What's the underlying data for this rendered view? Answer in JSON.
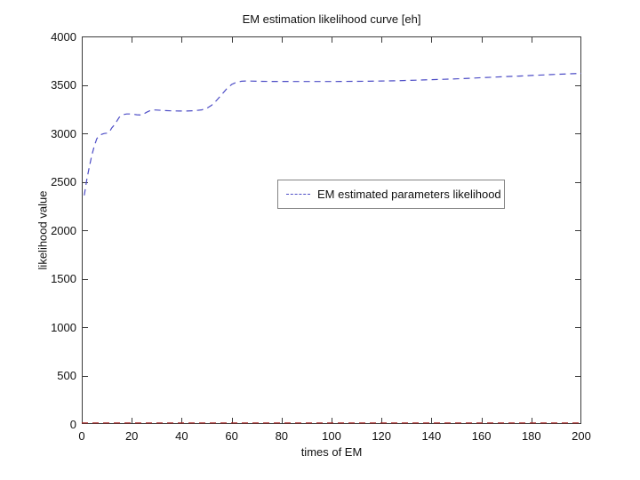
{
  "figure": {
    "title": "EM estimation likelihood curve [eh]",
    "xlabel": "times of EM",
    "ylabel": "likelihood value"
  },
  "legend": {
    "entries": [
      {
        "label": "EM estimated parameters likelihood",
        "color": "#4d4dc6",
        "style": "dashed"
      }
    ],
    "position": "center"
  },
  "chart_data": {
    "type": "line",
    "title": "EM estimation likelihood curve [eh]",
    "xlabel": "times of EM",
    "ylabel": "likelihood value",
    "xlim": [
      0,
      200
    ],
    "ylim": [
      0,
      4000
    ],
    "xticks": [
      0,
      20,
      40,
      60,
      80,
      100,
      120,
      140,
      160,
      180,
      200
    ],
    "yticks": [
      0,
      500,
      1000,
      1500,
      2000,
      2500,
      3000,
      3500,
      4000
    ],
    "grid": false,
    "axis_color": "#3c3c3c",
    "legend_position": "center",
    "series": [
      {
        "name": "EM estimated parameters likelihood",
        "color": "#4d4dc6",
        "line_style": "dashed",
        "points": [
          [
            1,
            2360
          ],
          [
            2,
            2520
          ],
          [
            3,
            2650
          ],
          [
            4,
            2770
          ],
          [
            5,
            2870
          ],
          [
            6,
            2945
          ],
          [
            7,
            2975
          ],
          [
            8,
            2990
          ],
          [
            9,
            2998
          ],
          [
            10,
            3002
          ],
          [
            11,
            3012
          ],
          [
            12,
            3055
          ],
          [
            13,
            3085
          ],
          [
            14,
            3125
          ],
          [
            15,
            3165
          ],
          [
            16,
            3185
          ],
          [
            17,
            3195
          ],
          [
            18,
            3200
          ],
          [
            20,
            3200
          ],
          [
            22,
            3192
          ],
          [
            24,
            3188
          ],
          [
            26,
            3218
          ],
          [
            28,
            3242
          ],
          [
            30,
            3240
          ],
          [
            33,
            3236
          ],
          [
            36,
            3232
          ],
          [
            39,
            3230
          ],
          [
            42,
            3230
          ],
          [
            45,
            3234
          ],
          [
            48,
            3242
          ],
          [
            50,
            3258
          ],
          [
            52,
            3290
          ],
          [
            54,
            3340
          ],
          [
            56,
            3400
          ],
          [
            58,
            3460
          ],
          [
            60,
            3505
          ],
          [
            62,
            3528
          ],
          [
            64,
            3538
          ],
          [
            66,
            3540
          ],
          [
            70,
            3538
          ],
          [
            75,
            3536
          ],
          [
            80,
            3536
          ],
          [
            85,
            3535
          ],
          [
            90,
            3535
          ],
          [
            95,
            3535
          ],
          [
            100,
            3535
          ],
          [
            105,
            3536
          ],
          [
            110,
            3537
          ],
          [
            115,
            3538
          ],
          [
            120,
            3540
          ],
          [
            125,
            3542
          ],
          [
            130,
            3546
          ],
          [
            135,
            3550
          ],
          [
            140,
            3554
          ],
          [
            145,
            3558
          ],
          [
            150,
            3562
          ],
          [
            155,
            3568
          ],
          [
            160,
            3574
          ],
          [
            165,
            3580
          ],
          [
            170,
            3586
          ],
          [
            175,
            3591
          ],
          [
            180,
            3597
          ],
          [
            185,
            3603
          ],
          [
            190,
            3609
          ],
          [
            195,
            3614
          ],
          [
            200,
            3619
          ]
        ]
      },
      {
        "name": "zero baseline",
        "color": "#aa2222",
        "line_style": "dashed",
        "points": [
          [
            0,
            0
          ],
          [
            200,
            0
          ]
        ]
      }
    ]
  }
}
